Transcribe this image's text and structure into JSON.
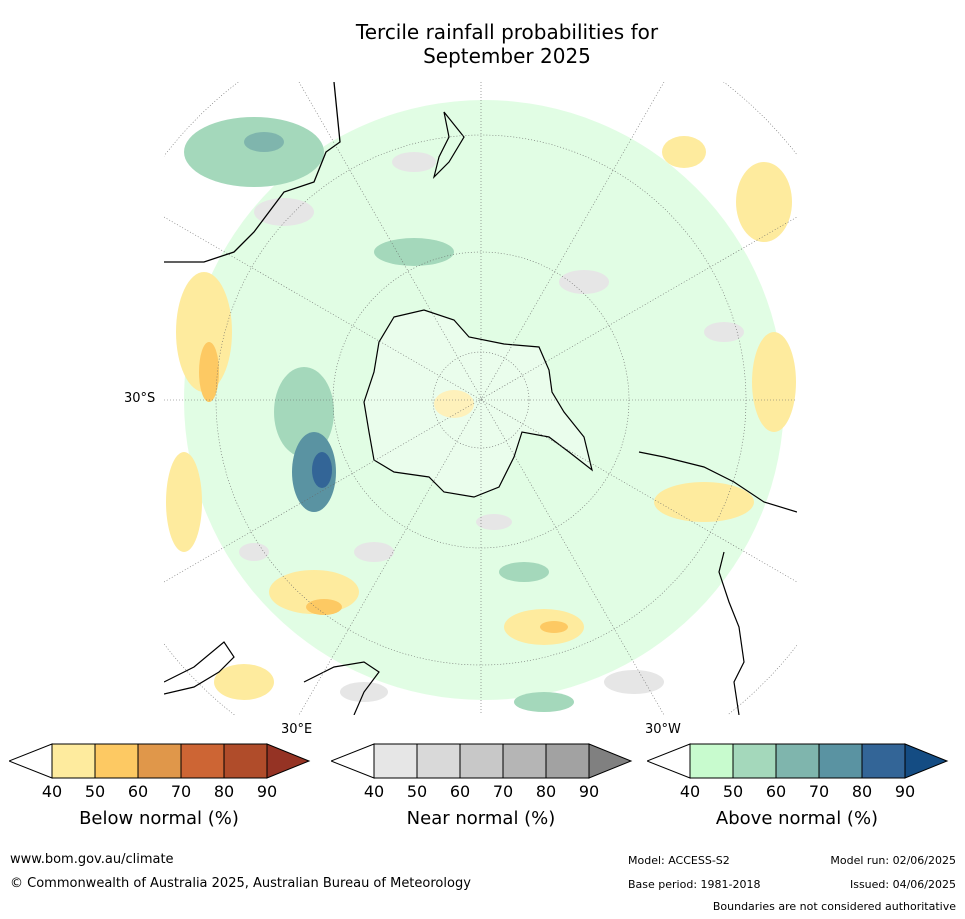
{
  "title_line1": "Tercile rainfall probabilities for",
  "title_line2": "September 2025",
  "map": {
    "projection": "south polar stereographic",
    "lat_label": "30°S",
    "lon_label_left": "30°E",
    "lon_label_right": "30°W",
    "background_color": "#ffffff",
    "land_outline_color": "#000000"
  },
  "colorbars": [
    {
      "label": "Below normal (%)",
      "ticks": [
        "40",
        "50",
        "60",
        "70",
        "80",
        "90"
      ],
      "colors": [
        "#ffffff",
        "#feeb9e",
        "#fdc963",
        "#e0974a",
        "#cd6534",
        "#b04c2a",
        "#953324"
      ]
    },
    {
      "label": "Near normal (%)",
      "ticks": [
        "40",
        "50",
        "60",
        "70",
        "80",
        "90"
      ],
      "colors": [
        "#ffffff",
        "#e6e6e6",
        "#d9d9d9",
        "#c8c8c8",
        "#b5b5b5",
        "#a2a2a2",
        "#808080"
      ]
    },
    {
      "label": "Above normal (%)",
      "ticks": [
        "40",
        "50",
        "60",
        "70",
        "80",
        "90"
      ],
      "colors": [
        "#ffffff",
        "#c8fbce",
        "#a4d8bb",
        "#7fb5ad",
        "#5a93a2",
        "#336597",
        "#144c83"
      ]
    }
  ],
  "footer": {
    "website": "www.bom.gov.au/climate",
    "copyright": "© Commonwealth of Australia 2025, Australian Bureau of Meteorology",
    "model": "Model: ACCESS-S2",
    "base_period": "Base period: 1981-2018",
    "model_run": "Model run: 02/06/2025",
    "issued": "Issued: 04/06/2025",
    "disclaimer": "Boundaries are not considered authoritative"
  }
}
